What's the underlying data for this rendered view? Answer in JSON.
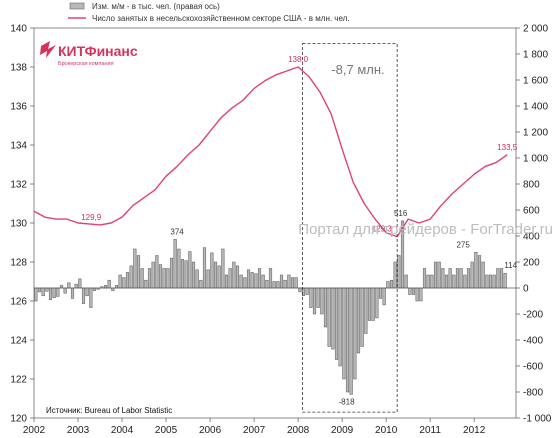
{
  "logo": {
    "name": "КИТФинанс",
    "tagline": "Брокерская компания"
  },
  "watermark": "Портал для трейдеров - ForTrader.ru",
  "source": "Источник: Bureau of Labor Statistic",
  "annotation": "-8,7 млн.",
  "chart_data": {
    "type": "bar",
    "xlabel": "",
    "ylabel": "",
    "x_ticks": [
      "2002",
      "2003",
      "2004",
      "2005",
      "2006",
      "2007",
      "2008",
      "2009",
      "2010",
      "2011",
      "2012"
    ],
    "x_range": [
      2002,
      2012.95
    ],
    "y_left": {
      "range": [
        120,
        140
      ],
      "ticks": [
        "120",
        "122",
        "124",
        "126",
        "128",
        "130",
        "132",
        "134",
        "136",
        "138",
        "140"
      ]
    },
    "y_right": {
      "range": [
        -1000,
        2000
      ],
      "ticks": [
        "-1 000",
        "-800",
        "-600",
        "-400",
        "-200",
        "0",
        "200",
        "400",
        "600",
        "800",
        "1 000",
        "1 200",
        "1 400",
        "1 600",
        "1 800",
        "2 000"
      ]
    },
    "legend": [
      {
        "name": "Изм. м/м - в тыс. чел. (правая ось)",
        "type": "bar",
        "color": "#b8b8b8"
      },
      {
        "name": "Число занятых в несельскохозяйственном секторе США - в млн. чел.",
        "type": "line",
        "color": "#e0407a"
      }
    ],
    "line_series": {
      "name": "Число занятых в несельскохозяйственном секторе США - в млн. чел.",
      "axis": "left",
      "color": "#e0407a",
      "points": [
        [
          2002.0,
          130.6
        ],
        [
          2002.25,
          130.3
        ],
        [
          2002.5,
          130.2
        ],
        [
          2002.75,
          130.2
        ],
        [
          2003.0,
          130.0
        ],
        [
          2003.25,
          129.95
        ],
        [
          2003.5,
          129.9
        ],
        [
          2003.75,
          130.0
        ],
        [
          2004.0,
          130.3
        ],
        [
          2004.25,
          130.9
        ],
        [
          2004.5,
          131.3
        ],
        [
          2004.75,
          131.7
        ],
        [
          2005.0,
          132.4
        ],
        [
          2005.25,
          132.9
        ],
        [
          2005.5,
          133.5
        ],
        [
          2005.75,
          134.0
        ],
        [
          2006.0,
          134.7
        ],
        [
          2006.25,
          135.4
        ],
        [
          2006.5,
          135.9
        ],
        [
          2006.75,
          136.3
        ],
        [
          2007.0,
          136.9
        ],
        [
          2007.25,
          137.3
        ],
        [
          2007.5,
          137.6
        ],
        [
          2007.75,
          137.8
        ],
        [
          2008.0,
          138.0
        ],
        [
          2008.25,
          137.5
        ],
        [
          2008.5,
          136.7
        ],
        [
          2008.75,
          135.6
        ],
        [
          2009.0,
          133.8
        ],
        [
          2009.25,
          132.1
        ],
        [
          2009.5,
          131.0
        ],
        [
          2009.75,
          130.2
        ],
        [
          2010.0,
          129.5
        ],
        [
          2010.25,
          129.3
        ],
        [
          2010.5,
          130.2
        ],
        [
          2010.75,
          130.0
        ],
        [
          2011.0,
          130.2
        ],
        [
          2011.25,
          130.9
        ],
        [
          2011.5,
          131.5
        ],
        [
          2011.75,
          132.0
        ],
        [
          2012.0,
          132.5
        ],
        [
          2012.25,
          132.9
        ],
        [
          2012.5,
          133.1
        ],
        [
          2012.75,
          133.5
        ]
      ]
    },
    "bar_series": {
      "name": "Изм. м/м - в тыс. чел. (правая ось)",
      "axis": "right",
      "color": "#b8b8b8",
      "start": 2002.0,
      "step": 0.0833,
      "values": [
        -100,
        -30,
        -60,
        -25,
        -90,
        -75,
        -65,
        20,
        -40,
        40,
        -80,
        30,
        70,
        -120,
        -60,
        -150,
        -20,
        -10,
        10,
        20,
        60,
        -20,
        20,
        100,
        80,
        120,
        170,
        300,
        250,
        150,
        60,
        150,
        200,
        250,
        180,
        150,
        150,
        230,
        374,
        300,
        220,
        210,
        280,
        200,
        140,
        60,
        310,
        140,
        270,
        200,
        170,
        300,
        100,
        150,
        200,
        170,
        100,
        80,
        140,
        120,
        110,
        150,
        100,
        60,
        150,
        50,
        50,
        100,
        60,
        100,
        80,
        80,
        -30,
        -60,
        -50,
        -150,
        -200,
        -150,
        -200,
        -300,
        -450,
        -470,
        -550,
        -600,
        -700,
        -800,
        -818,
        -700,
        -500,
        -450,
        -350,
        -250,
        -250,
        -230,
        -80,
        -130,
        50,
        60,
        200,
        250,
        516,
        100,
        -50,
        -50,
        -100,
        -100,
        150,
        100,
        100,
        200,
        200,
        150,
        100,
        150,
        100,
        150,
        150,
        100,
        150,
        200,
        275,
        250,
        200,
        100,
        100,
        100,
        150,
        150,
        114
      ]
    },
    "data_labels": [
      {
        "text": "129,9",
        "axis": "left",
        "x": 2003.3,
        "y": 129.9,
        "color": "#c0306a"
      },
      {
        "text": "138,0",
        "axis": "left",
        "x": 2008.0,
        "y": 138.0,
        "color": "#c0306a"
      },
      {
        "text": "129,3",
        "axis": "left",
        "x": 2009.9,
        "y": 129.3,
        "color": "#c0306a"
      },
      {
        "text": "133,5",
        "axis": "left",
        "x": 2012.75,
        "y": 133.5,
        "color": "#c0306a"
      },
      {
        "text": "374",
        "axis": "right",
        "x": 2005.25,
        "y": 374,
        "color": "#333333"
      },
      {
        "text": "516",
        "axis": "right",
        "x": 2010.33,
        "y": 516,
        "color": "#333333"
      },
      {
        "text": "275",
        "axis": "right",
        "x": 2011.75,
        "y": 275,
        "color": "#333333"
      },
      {
        "text": "114",
        "axis": "right",
        "x": 2012.83,
        "y": 114,
        "color": "#333333"
      },
      {
        "text": "-818",
        "axis": "right",
        "x": 2009.1,
        "y": -818,
        "color": "#333333"
      }
    ],
    "highlight": {
      "x_range": [
        2008.1,
        2010.25
      ]
    },
    "grid": false
  }
}
